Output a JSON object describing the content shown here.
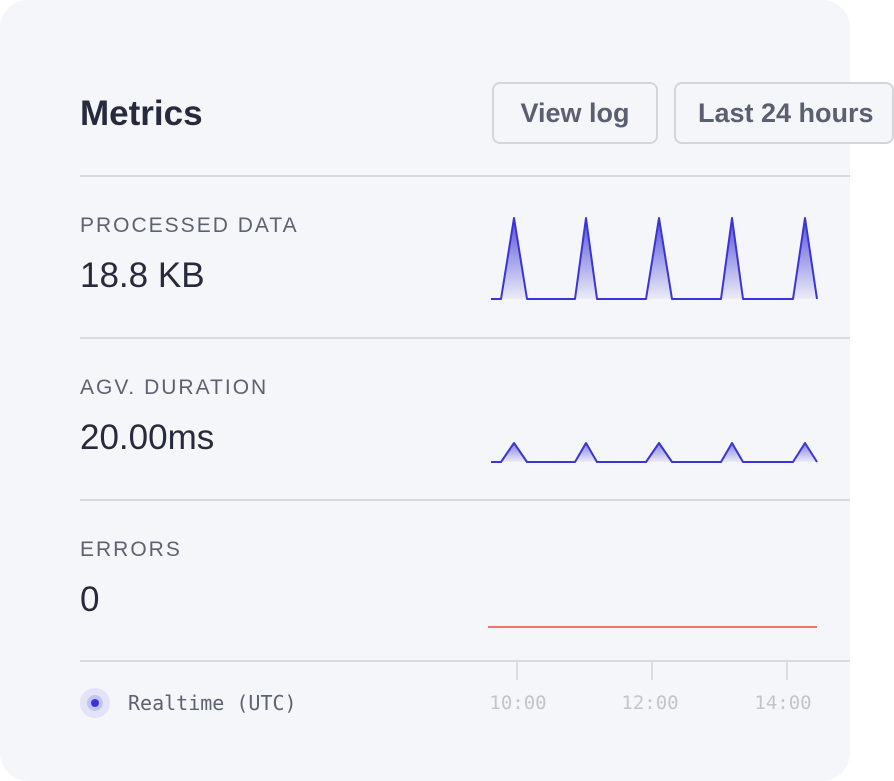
{
  "header": {
    "title": "Metrics",
    "view_log_label": "View log",
    "range_label": "Last 24 hours"
  },
  "metrics": [
    {
      "label": "PROCESSED DATA",
      "value": "18.8 KB"
    },
    {
      "label": "AGV. DURATION",
      "value": "20.00ms"
    },
    {
      "label": "ERRORS",
      "value": "0"
    }
  ],
  "footer": {
    "realtime_label": "Realtime (UTC)",
    "ticks": [
      "10:00",
      "12:00",
      "14:00"
    ]
  },
  "colors": {
    "accent": "#3b34d6",
    "error_line": "#f0736b"
  }
}
